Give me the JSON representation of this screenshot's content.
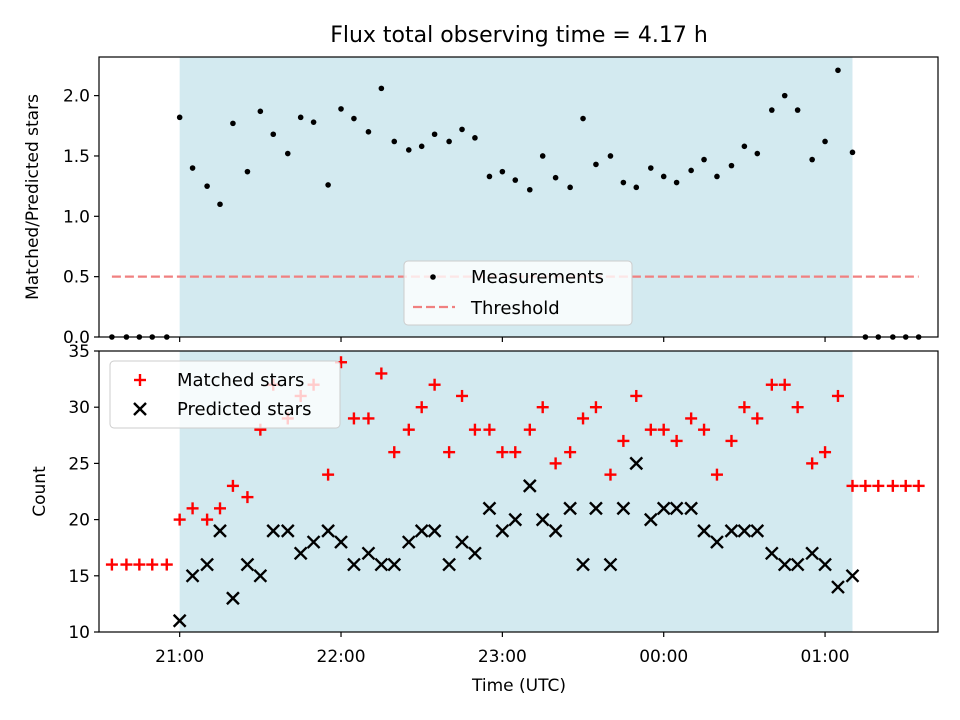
{
  "chart_data": [
    {
      "type": "scatter",
      "title": "Flux total observing time = 4.17 h",
      "xlabel": "",
      "ylabel": "Matched/Predicted stars",
      "ylim": [
        0,
        2.32
      ],
      "yticks": [
        "0.0",
        "0.5",
        "1.0",
        "1.5",
        "2.0"
      ],
      "xlim_hours": [
        20.5,
        25.7
      ],
      "shaded_span_hours": [
        21.0,
        25.17
      ],
      "shade_color": "#d3eaf0",
      "legend_position": "lower center",
      "series": [
        {
          "name": "Measurements",
          "marker": "dot",
          "color": "#000000",
          "x": [
            20.58,
            20.67,
            20.75,
            20.83,
            20.92,
            21.0,
            21.08,
            21.17,
            21.25,
            21.33,
            21.42,
            21.5,
            21.58,
            21.67,
            21.75,
            21.83,
            21.92,
            22.0,
            22.08,
            22.17,
            22.25,
            22.33,
            22.42,
            22.5,
            22.58,
            22.67,
            22.75,
            22.83,
            22.92,
            23.0,
            23.08,
            23.17,
            23.25,
            23.33,
            23.42,
            23.5,
            23.58,
            23.67,
            23.75,
            23.83,
            23.92,
            24.0,
            24.08,
            24.17,
            24.25,
            24.33,
            24.42,
            24.5,
            24.58,
            24.67,
            24.75,
            24.83,
            24.92,
            25.0,
            25.08,
            25.17,
            25.25,
            25.33,
            25.42,
            25.5,
            25.58
          ],
          "y": [
            0,
            0,
            0,
            0,
            0,
            1.82,
            1.4,
            1.25,
            1.1,
            1.77,
            1.37,
            1.87,
            1.68,
            1.52,
            1.82,
            1.78,
            1.26,
            1.89,
            1.81,
            1.7,
            2.06,
            1.62,
            1.55,
            1.58,
            1.68,
            1.62,
            1.72,
            1.65,
            1.33,
            1.37,
            1.3,
            1.22,
            1.5,
            1.32,
            1.24,
            1.81,
            1.43,
            1.5,
            1.28,
            1.24,
            1.4,
            1.33,
            1.28,
            1.38,
            1.47,
            1.33,
            1.42,
            1.58,
            1.52,
            1.88,
            2.0,
            1.88,
            1.47,
            1.62,
            2.21,
            1.53,
            0,
            0,
            0,
            0,
            0
          ]
        },
        {
          "name": "Threshold",
          "marker": "dashed-line",
          "color": "#f08080",
          "x": [
            20.58,
            25.58
          ],
          "y": [
            0.5,
            0.5
          ]
        }
      ]
    },
    {
      "type": "scatter",
      "title": "",
      "xlabel": "Time (UTC)",
      "ylabel": "Count",
      "ylim": [
        10,
        35
      ],
      "yticks": [
        "10",
        "15",
        "20",
        "25",
        "30",
        "35"
      ],
      "xlim_hours": [
        20.5,
        25.7
      ],
      "xticks": [
        {
          "h": 21,
          "label": "21:00"
        },
        {
          "h": 22,
          "label": "22:00"
        },
        {
          "h": 23,
          "label": "23:00"
        },
        {
          "h": 24,
          "label": "00:00"
        },
        {
          "h": 25,
          "label": "01:00"
        }
      ],
      "shaded_span_hours": [
        21.0,
        25.17
      ],
      "shade_color": "#d3eaf0",
      "legend_position": "upper left",
      "series": [
        {
          "name": "Matched stars",
          "marker": "plus",
          "color": "#ff0000",
          "x": [
            20.58,
            20.67,
            20.75,
            20.83,
            20.92,
            21.0,
            21.08,
            21.17,
            21.25,
            21.33,
            21.42,
            21.5,
            21.58,
            21.67,
            21.75,
            21.83,
            21.92,
            22.0,
            22.08,
            22.17,
            22.25,
            22.33,
            22.42,
            22.5,
            22.58,
            22.67,
            22.75,
            22.83,
            22.92,
            23.0,
            23.08,
            23.17,
            23.25,
            23.33,
            23.42,
            23.5,
            23.58,
            23.67,
            23.75,
            23.83,
            23.92,
            24.0,
            24.08,
            24.17,
            24.25,
            24.33,
            24.42,
            24.5,
            24.58,
            24.67,
            24.75,
            24.83,
            24.92,
            25.0,
            25.08,
            25.17,
            25.25,
            25.33,
            25.42,
            25.5,
            25.58
          ],
          "y": [
            16,
            16,
            16,
            16,
            16,
            20,
            21,
            20,
            21,
            23,
            22,
            28,
            32,
            29,
            31,
            32,
            24,
            34,
            29,
            29,
            33,
            26,
            28,
            30,
            32,
            26,
            31,
            28,
            28,
            26,
            26,
            28,
            30,
            25,
            26,
            29,
            30,
            24,
            27,
            31,
            28,
            28,
            27,
            29,
            28,
            24,
            27,
            30,
            29,
            32,
            32,
            30,
            25,
            26,
            31,
            23,
            23,
            23,
            23,
            23,
            23
          ]
        },
        {
          "name": "Predicted stars",
          "marker": "x",
          "color": "#000000",
          "x": [
            21.0,
            21.08,
            21.17,
            21.25,
            21.33,
            21.42,
            21.5,
            21.58,
            21.67,
            21.75,
            21.83,
            21.92,
            22.0,
            22.08,
            22.17,
            22.25,
            22.33,
            22.42,
            22.5,
            22.58,
            22.67,
            22.75,
            22.83,
            22.92,
            23.0,
            23.08,
            23.17,
            23.25,
            23.33,
            23.42,
            23.5,
            23.58,
            23.67,
            23.75,
            23.83,
            23.92,
            24.0,
            24.08,
            24.17,
            24.25,
            24.33,
            24.42,
            24.5,
            24.58,
            24.67,
            24.75,
            24.83,
            24.92,
            25.0,
            25.08,
            25.17
          ],
          "y": [
            11,
            15,
            16,
            19,
            13,
            16,
            15,
            19,
            19,
            17,
            18,
            19,
            18,
            16,
            17,
            16,
            16,
            18,
            19,
            19,
            16,
            18,
            17,
            21,
            19,
            20,
            23,
            20,
            19,
            21,
            16,
            21,
            16,
            21,
            25,
            20,
            21,
            21,
            21,
            19,
            18,
            19,
            19,
            19,
            17,
            16,
            16,
            17,
            16,
            14,
            15
          ]
        }
      ]
    }
  ]
}
